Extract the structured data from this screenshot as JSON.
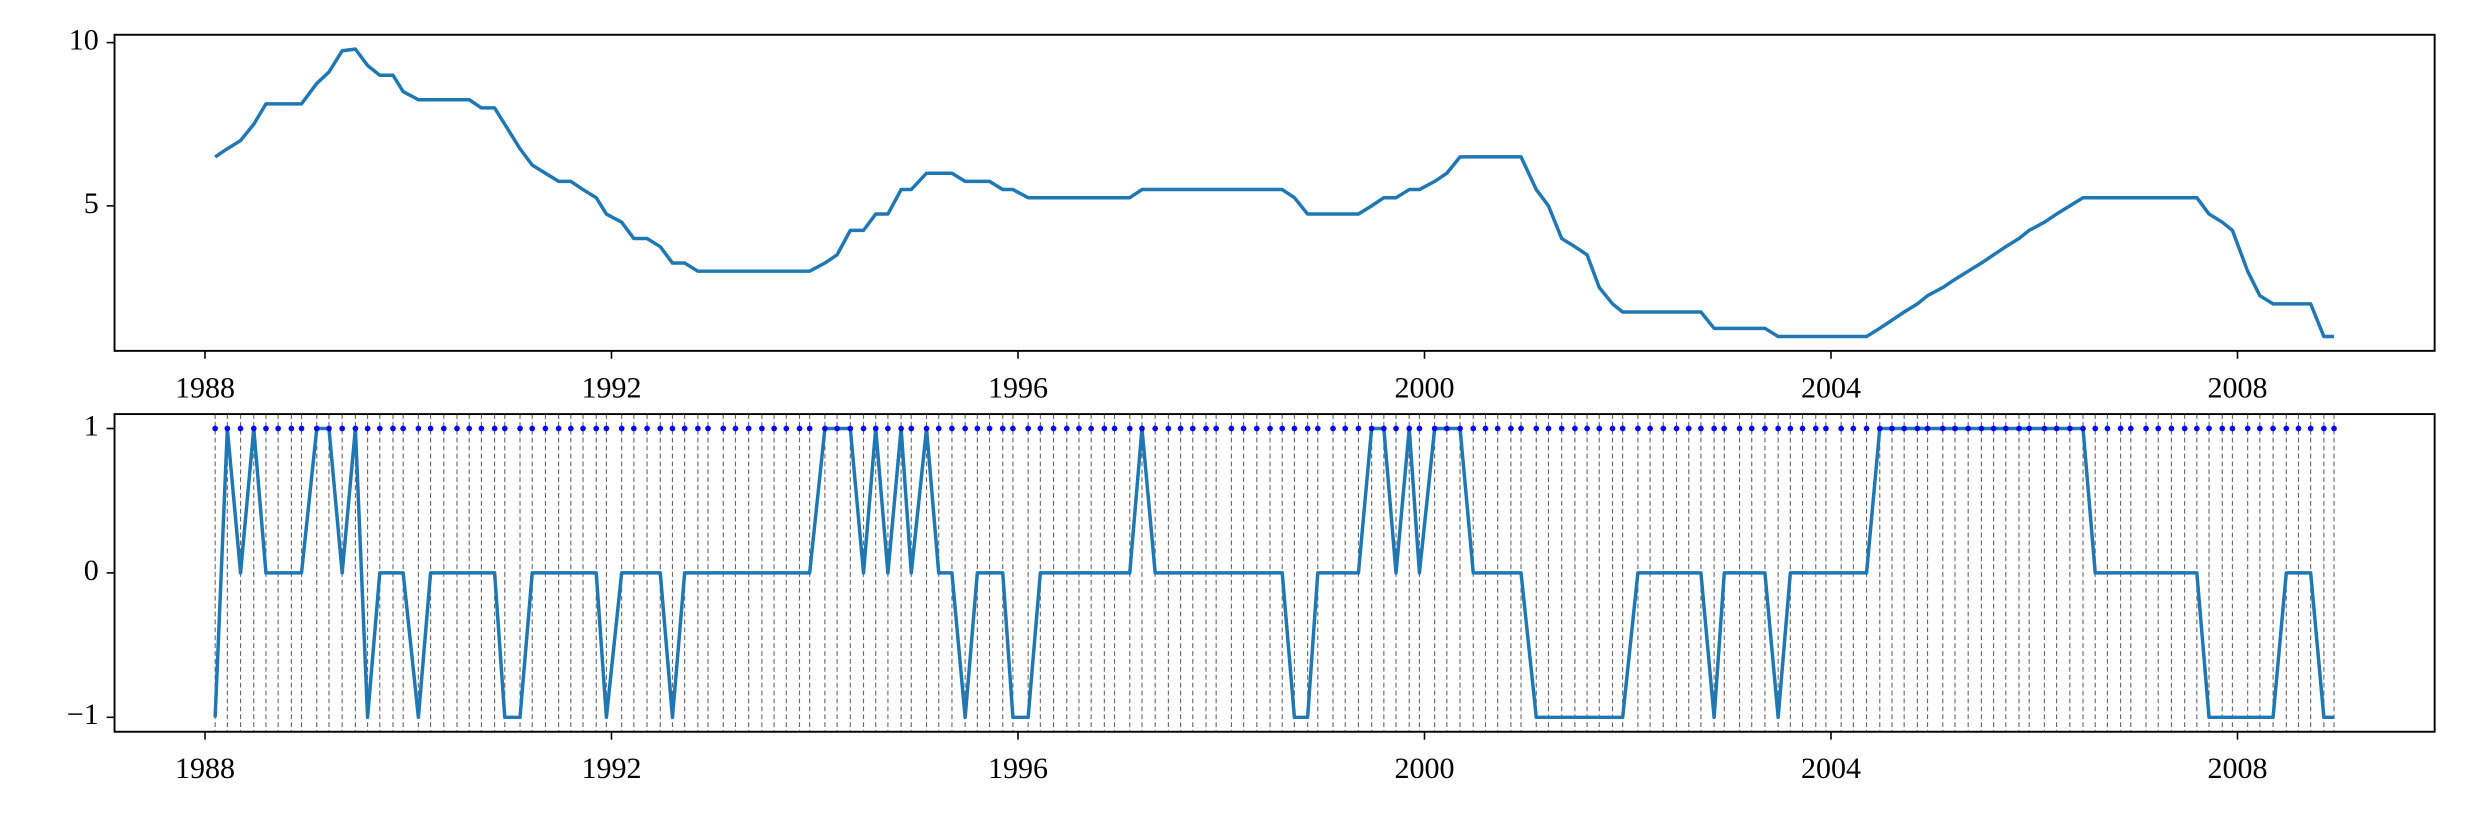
{
  "chart_data": [
    {
      "type": "line",
      "x": [
        1988.1,
        1988.22,
        1988.35,
        1988.48,
        1988.6,
        1988.72,
        1988.85,
        1988.95,
        1989.1,
        1989.22,
        1989.35,
        1989.48,
        1989.6,
        1989.72,
        1989.85,
        1989.95,
        1990.1,
        1990.22,
        1990.35,
        1990.48,
        1990.6,
        1990.72,
        1990.85,
        1990.95,
        1991.1,
        1991.22,
        1991.35,
        1991.48,
        1991.6,
        1991.72,
        1991.85,
        1991.95,
        1992.1,
        1992.22,
        1992.35,
        1992.48,
        1992.6,
        1992.72,
        1992.85,
        1992.95,
        1993.1,
        1993.22,
        1993.35,
        1993.48,
        1993.6,
        1993.72,
        1993.85,
        1993.95,
        1994.1,
        1994.22,
        1994.35,
        1994.48,
        1994.6,
        1994.72,
        1994.85,
        1994.95,
        1995.1,
        1995.22,
        1995.35,
        1995.48,
        1995.6,
        1995.72,
        1995.85,
        1995.95,
        1996.1,
        1996.22,
        1996.35,
        1996.48,
        1996.6,
        1996.72,
        1996.85,
        1996.95,
        1997.1,
        1997.22,
        1997.35,
        1997.48,
        1997.6,
        1997.72,
        1997.85,
        1997.95,
        1998.1,
        1998.22,
        1998.35,
        1998.48,
        1998.6,
        1998.72,
        1998.85,
        1998.95,
        1999.1,
        1999.22,
        1999.35,
        1999.48,
        1999.6,
        1999.72,
        1999.85,
        1999.95,
        2000.1,
        2000.22,
        2000.35,
        2000.48,
        2000.6,
        2000.72,
        2000.85,
        2000.95,
        2001.1,
        2001.22,
        2001.35,
        2001.48,
        2001.6,
        2001.72,
        2001.85,
        2001.95,
        2002.1,
        2002.22,
        2002.35,
        2002.48,
        2002.6,
        2002.72,
        2002.85,
        2002.95,
        2003.1,
        2003.22,
        2003.35,
        2003.48,
        2003.6,
        2003.72,
        2003.85,
        2003.95,
        2004.1,
        2004.22,
        2004.35,
        2004.48,
        2004.6,
        2004.72,
        2004.85,
        2004.95,
        2005.1,
        2005.22,
        2005.35,
        2005.48,
        2005.6,
        2005.72,
        2005.85,
        2005.95,
        2006.1,
        2006.22,
        2006.35,
        2006.48,
        2006.6,
        2006.72,
        2006.85,
        2006.95,
        2007.1,
        2007.22,
        2007.35,
        2007.48,
        2007.6,
        2007.72,
        2007.85,
        2007.95,
        2008.1,
        2008.22,
        2008.35,
        2008.48,
        2008.6,
        2008.72,
        2008.85,
        2008.95
      ],
      "series": [
        {
          "color": "#1f77b4",
          "values": [
            6.5,
            6.75,
            7.0,
            7.5,
            8.125,
            8.125,
            8.125,
            8.125,
            8.75,
            9.1,
            9.75,
            9.8,
            9.3,
            9.0,
            9.0,
            8.5,
            8.25,
            8.25,
            8.25,
            8.25,
            8.25,
            8.0,
            8.0,
            7.5,
            6.75,
            6.25,
            6.0,
            5.75,
            5.75,
            5.5,
            5.25,
            4.75,
            4.5,
            4.0,
            4.0,
            3.75,
            3.25,
            3.25,
            3.0,
            3.0,
            3.0,
            3.0,
            3.0,
            3.0,
            3.0,
            3.0,
            3.0,
            3.0,
            3.25,
            3.5,
            4.25,
            4.25,
            4.75,
            4.75,
            5.5,
            5.5,
            6.0,
            6.0,
            6.0,
            5.75,
            5.75,
            5.75,
            5.5,
            5.5,
            5.25,
            5.25,
            5.25,
            5.25,
            5.25,
            5.25,
            5.25,
            5.25,
            5.25,
            5.5,
            5.5,
            5.5,
            5.5,
            5.5,
            5.5,
            5.5,
            5.5,
            5.5,
            5.5,
            5.5,
            5.5,
            5.25,
            4.75,
            4.75,
            4.75,
            4.75,
            4.75,
            5.0,
            5.25,
            5.25,
            5.5,
            5.5,
            5.75,
            6.0,
            6.5,
            6.5,
            6.5,
            6.5,
            6.5,
            6.5,
            5.5,
            5.0,
            4.0,
            3.75,
            3.5,
            2.5,
            2.0,
            1.75,
            1.75,
            1.75,
            1.75,
            1.75,
            1.75,
            1.75,
            1.25,
            1.25,
            1.25,
            1.25,
            1.25,
            1.0,
            1.0,
            1.0,
            1.0,
            1.0,
            1.0,
            1.0,
            1.0,
            1.25,
            1.5,
            1.75,
            2.0,
            2.25,
            2.5,
            2.75,
            3.0,
            3.25,
            3.5,
            3.75,
            4.0,
            4.25,
            4.5,
            4.75,
            5.0,
            5.25,
            5.25,
            5.25,
            5.25,
            5.25,
            5.25,
            5.25,
            5.25,
            5.25,
            5.25,
            4.75,
            4.5,
            4.25,
            3.0,
            2.25,
            2.0,
            2.0,
            2.0,
            2.0,
            1.0,
            1.0
          ]
        }
      ],
      "xlim": [
        1987.11,
        2009.94
      ],
      "xticks": [
        1988,
        1992,
        1996,
        2000,
        2004,
        2008
      ],
      "ylim": [
        0.56,
        10.24
      ],
      "yticks": [
        5,
        10
      ]
    },
    {
      "type": "line",
      "x": [
        1988.1,
        1988.22,
        1988.35,
        1988.48,
        1988.6,
        1988.72,
        1988.85,
        1988.95,
        1989.1,
        1989.22,
        1989.35,
        1989.48,
        1989.6,
        1989.72,
        1989.85,
        1989.95,
        1990.1,
        1990.22,
        1990.35,
        1990.48,
        1990.6,
        1990.72,
        1990.85,
        1990.95,
        1991.1,
        1991.22,
        1991.35,
        1991.48,
        1991.6,
        1991.72,
        1991.85,
        1991.95,
        1992.1,
        1992.22,
        1992.35,
        1992.48,
        1992.6,
        1992.72,
        1992.85,
        1992.95,
        1993.1,
        1993.22,
        1993.35,
        1993.48,
        1993.6,
        1993.72,
        1993.85,
        1993.95,
        1994.1,
        1994.22,
        1994.35,
        1994.48,
        1994.6,
        1994.72,
        1994.85,
        1994.95,
        1995.1,
        1995.22,
        1995.35,
        1995.48,
        1995.6,
        1995.72,
        1995.85,
        1995.95,
        1996.1,
        1996.22,
        1996.35,
        1996.48,
        1996.6,
        1996.72,
        1996.85,
        1996.95,
        1997.1,
        1997.22,
        1997.35,
        1997.48,
        1997.6,
        1997.72,
        1997.85,
        1997.95,
        1998.1,
        1998.22,
        1998.35,
        1998.48,
        1998.6,
        1998.72,
        1998.85,
        1998.95,
        1999.1,
        1999.22,
        1999.35,
        1999.48,
        1999.6,
        1999.72,
        1999.85,
        1999.95,
        2000.1,
        2000.22,
        2000.35,
        2000.48,
        2000.6,
        2000.72,
        2000.85,
        2000.95,
        2001.1,
        2001.22,
        2001.35,
        2001.48,
        2001.6,
        2001.72,
        2001.85,
        2001.95,
        2002.1,
        2002.22,
        2002.35,
        2002.48,
        2002.6,
        2002.72,
        2002.85,
        2002.95,
        2003.1,
        2003.22,
        2003.35,
        2003.48,
        2003.6,
        2003.72,
        2003.85,
        2003.95,
        2004.1,
        2004.22,
        2004.35,
        2004.48,
        2004.6,
        2004.72,
        2004.85,
        2004.95,
        2005.1,
        2005.22,
        2005.35,
        2005.48,
        2005.6,
        2005.72,
        2005.85,
        2005.95,
        2006.1,
        2006.22,
        2006.35,
        2006.48,
        2006.6,
        2006.72,
        2006.85,
        2006.95,
        2007.1,
        2007.22,
        2007.35,
        2007.48,
        2007.6,
        2007.72,
        2007.85,
        2007.95,
        2008.1,
        2008.22,
        2008.35,
        2008.48,
        2008.6,
        2008.72,
        2008.85,
        2008.95
      ],
      "vlines": true,
      "series": [
        {
          "color": "#1f77b4",
          "values": [
            -1,
            1,
            0,
            1,
            0,
            0,
            0,
            0,
            1,
            1,
            0,
            1,
            -1,
            0,
            0,
            0,
            -1,
            0,
            0,
            0,
            0,
            0,
            0,
            -1,
            -1,
            0,
            0,
            0,
            0,
            0,
            0,
            -1,
            0,
            0,
            0,
            0,
            -1,
            0,
            0,
            0,
            0,
            0,
            0,
            0,
            0,
            0,
            0,
            0,
            1,
            1,
            1,
            0,
            1,
            0,
            1,
            0,
            1,
            0,
            0,
            -1,
            0,
            0,
            0,
            -1,
            -1,
            0,
            0,
            0,
            0,
            0,
            0,
            0,
            0,
            1,
            0,
            0,
            0,
            0,
            0,
            0,
            0,
            0,
            0,
            0,
            0,
            -1,
            -1,
            0,
            0,
            0,
            0,
            1,
            1,
            0,
            1,
            0,
            1,
            1,
            1,
            0,
            0,
            0,
            0,
            0,
            -1,
            -1,
            -1,
            -1,
            -1,
            -1,
            -1,
            -1,
            0,
            0,
            0,
            0,
            0,
            0,
            -1,
            0,
            0,
            0,
            0,
            -1,
            0,
            0,
            0,
            0,
            0,
            0,
            0,
            1,
            1,
            1,
            1,
            1,
            1,
            1,
            1,
            1,
            1,
            1,
            1,
            1,
            1,
            1,
            1,
            1,
            0,
            0,
            0,
            0,
            0,
            0,
            0,
            0,
            0,
            -1,
            -1,
            -1,
            -1,
            -1,
            -1,
            0,
            0,
            0,
            -1,
            -1
          ]
        },
        {
          "color": "#0000ff",
          "marker": true,
          "values": [
            1,
            1,
            1,
            1,
            1,
            1,
            1,
            1,
            1,
            1,
            1,
            1,
            1,
            1,
            1,
            1,
            1,
            1,
            1,
            1,
            1,
            1,
            1,
            1,
            1,
            1,
            1,
            1,
            1,
            1,
            1,
            1,
            1,
            1,
            1,
            1,
            1,
            1,
            1,
            1,
            1,
            1,
            1,
            1,
            1,
            1,
            1,
            1,
            1,
            1,
            1,
            1,
            1,
            1,
            1,
            1,
            1,
            1,
            1,
            1,
            1,
            1,
            1,
            1,
            1,
            1,
            1,
            1,
            1,
            1,
            1,
            1,
            1,
            1,
            1,
            1,
            1,
            1,
            1,
            1,
            1,
            1,
            1,
            1,
            1,
            1,
            1,
            1,
            1,
            1,
            1,
            1,
            1,
            1,
            1,
            1,
            1,
            1,
            1,
            1,
            1,
            1,
            1,
            1,
            1,
            1,
            1,
            1,
            1,
            1,
            1,
            1,
            1,
            1,
            1,
            1,
            1,
            1,
            1,
            1,
            1,
            1,
            1,
            1,
            1,
            1,
            1,
            1,
            1,
            1,
            1,
            1,
            1,
            1,
            1,
            1,
            1,
            1,
            1,
            1,
            1,
            1,
            1,
            1,
            1,
            1,
            1,
            1,
            1,
            1,
            1,
            1,
            1,
            1,
            1,
            1,
            1,
            1,
            1,
            1,
            1,
            1,
            1,
            1,
            1,
            1,
            1,
            1
          ]
        }
      ],
      "xlim": [
        1987.11,
        2009.94
      ],
      "xticks": [
        1988,
        1992,
        1996,
        2000,
        2004,
        2008
      ],
      "ylim": [
        -1.1,
        1.1
      ],
      "yticks": [
        {
          "value": -1,
          "label": "−1"
        },
        0,
        1
      ]
    }
  ]
}
